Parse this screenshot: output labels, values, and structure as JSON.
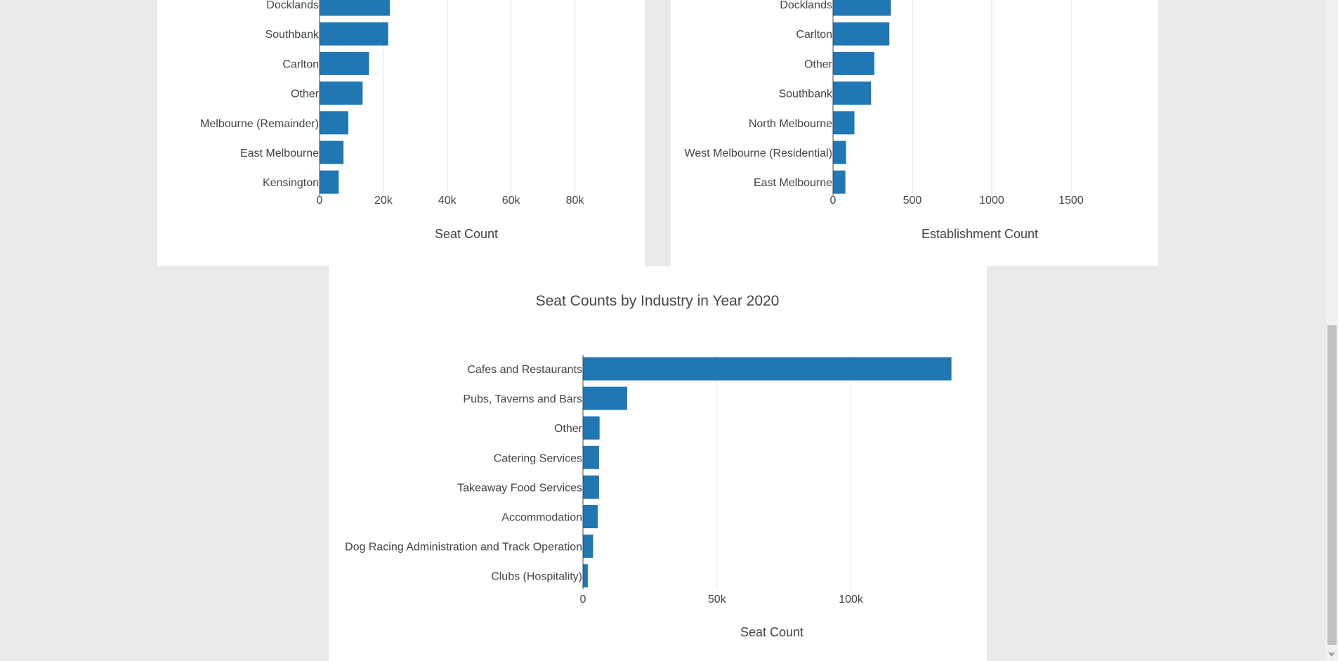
{
  "colors": {
    "bar": "#1f77b4",
    "grid": "#e5e5e5",
    "axis_line": "#444444",
    "text": "#444444",
    "page_bg": "#ebe9ea",
    "panel_bg": "#ffffff"
  },
  "chart_data": [
    {
      "type": "bar",
      "orientation": "horizontal",
      "title": "",
      "categories": [
        "Docklands",
        "Southbank",
        "Carlton",
        "Other",
        "Melbourne (Remainder)",
        "East Melbourne",
        "Kensington"
      ],
      "values": [
        22000,
        21500,
        15500,
        13500,
        9000,
        7500,
        6000
      ],
      "xlabel": "Seat Count",
      "ylabel": "",
      "xlim": [
        0,
        92000
      ],
      "xticks": [
        0,
        20000,
        40000,
        60000,
        80000
      ],
      "xtick_labels": [
        "0",
        "20k",
        "40k",
        "60k",
        "80k"
      ],
      "grid": true
    },
    {
      "type": "bar",
      "orientation": "horizontal",
      "title": "",
      "categories": [
        "Docklands",
        "Carlton",
        "Other",
        "Southbank",
        "North Melbourne",
        "West Melbourne (Residential)",
        "East Melbourne"
      ],
      "values": [
        365,
        355,
        260,
        240,
        135,
        82,
        78
      ],
      "xlabel": "Establishment Count",
      "ylabel": "",
      "xlim": [
        0,
        1850
      ],
      "xticks": [
        0,
        500,
        1000,
        1500
      ],
      "xtick_labels": [
        "0",
        "500",
        "1000",
        "1500"
      ],
      "grid": true
    },
    {
      "type": "bar",
      "orientation": "horizontal",
      "title": "Seat Counts by Industry in Year 2020",
      "categories": [
        "Cafes and Restaurants",
        "Pubs, Taverns and Bars",
        "Other",
        "Catering Services",
        "Takeaway Food Services",
        "Accommodation",
        "Dog Racing Administration and Track Operation",
        "Clubs (Hospitality)"
      ],
      "values": [
        137500,
        16500,
        6200,
        6000,
        6000,
        5500,
        3800,
        1800
      ],
      "xlabel": "Seat Count",
      "ylabel": "",
      "xlim": [
        0,
        141000
      ],
      "xticks": [
        0,
        50000,
        100000
      ],
      "xtick_labels": [
        "0",
        "50k",
        "100k"
      ],
      "grid": true
    }
  ]
}
